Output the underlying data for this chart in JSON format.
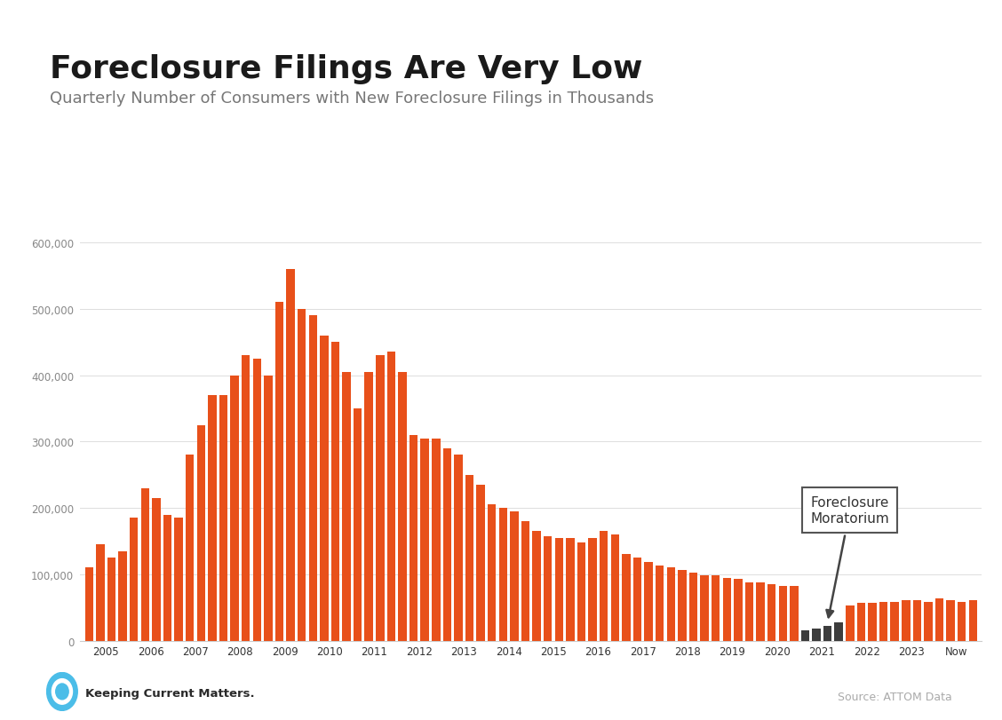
{
  "title": "Foreclosure Filings Are Very Low",
  "subtitle": "Quarterly Number of Consumers with New Foreclosure Filings in Thousands",
  "source": "Source: ATTOM Data",
  "bar_color_orange": "#E8501A",
  "bar_color_dark": "#3D3D3D",
  "background_color": "#FFFFFF",
  "top_bar_color": "#4BBDE8",
  "ylim": [
    0,
    630000
  ],
  "yticks": [
    0,
    100000,
    200000,
    300000,
    400000,
    500000,
    600000
  ],
  "annotation_text": "Foreclosure\nMoratorium",
  "quarters_per_year": {
    "2005": [
      110000,
      145000,
      125000,
      135000
    ],
    "2006": [
      185000,
      230000,
      215000,
      190000
    ],
    "2007": [
      185000,
      280000,
      325000,
      370000
    ],
    "2008": [
      370000,
      400000,
      430000,
      425000
    ],
    "2009": [
      400000,
      510000,
      560000,
      500000
    ],
    "2010": [
      490000,
      460000,
      450000,
      405000
    ],
    "2011": [
      350000,
      405000,
      430000,
      435000
    ],
    "2012": [
      405000,
      310000,
      305000,
      305000
    ],
    "2013": [
      290000,
      280000,
      250000,
      235000
    ],
    "2014": [
      205000,
      200000,
      195000,
      180000
    ],
    "2015": [
      165000,
      158000,
      155000,
      155000
    ],
    "2016": [
      148000,
      155000,
      165000,
      160000
    ],
    "2017": [
      130000,
      125000,
      118000,
      113000
    ],
    "2018": [
      110000,
      106000,
      103000,
      98000
    ],
    "2019": [
      98000,
      95000,
      93000,
      88000
    ],
    "2020": [
      88000,
      85000,
      83000,
      83000
    ],
    "2021": [
      16000,
      18000,
      22000,
      27000
    ],
    "2022": [
      53000,
      57000,
      57000,
      59000
    ],
    "2023": [
      59000,
      61000,
      61000,
      59000
    ],
    "Now": [
      64000,
      61000,
      59000,
      61000
    ]
  },
  "moratorium_years": [
    "2021"
  ],
  "year_order": [
    "2005",
    "2006",
    "2007",
    "2008",
    "2009",
    "2010",
    "2011",
    "2012",
    "2013",
    "2014",
    "2015",
    "2016",
    "2017",
    "2018",
    "2019",
    "2020",
    "2021",
    "2022",
    "2023",
    "Now"
  ]
}
